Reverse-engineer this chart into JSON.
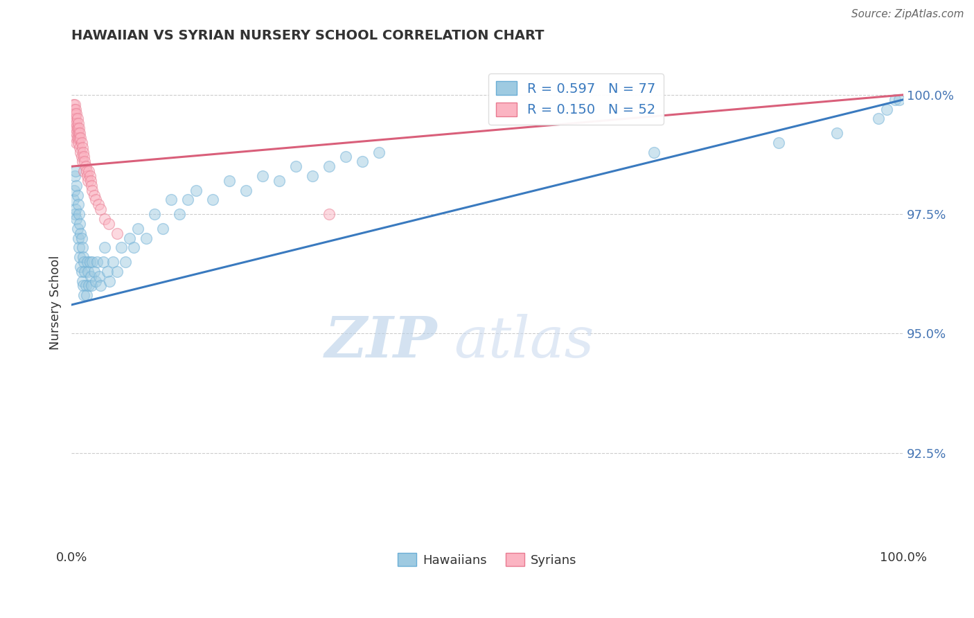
{
  "title": "HAWAIIAN VS SYRIAN NURSERY SCHOOL CORRELATION CHART",
  "source": "Source: ZipAtlas.com",
  "ylabel": "Nursery School",
  "xlim": [
    0.0,
    1.0
  ],
  "ylim": [
    0.905,
    1.008
  ],
  "yticks": [
    0.925,
    0.95,
    0.975,
    1.0
  ],
  "ytick_labels": [
    "92.5%",
    "95.0%",
    "97.5%",
    "100.0%"
  ],
  "xtick_labels": [
    "0.0%",
    "100.0%"
  ],
  "legend_r_entries": [
    {
      "label": "R = 0.597   N = 77",
      "color": "#7ab8e8"
    },
    {
      "label": "R = 0.150   N = 52",
      "color": "#f5a0b0"
    }
  ],
  "hawaiians": {
    "fill_color": "#9ecae1",
    "edge_color": "#6baed6",
    "trendline_color": "#3a7abf",
    "x": [
      0.002,
      0.003,
      0.004,
      0.004,
      0.005,
      0.005,
      0.006,
      0.006,
      0.007,
      0.007,
      0.008,
      0.008,
      0.009,
      0.009,
      0.01,
      0.01,
      0.011,
      0.011,
      0.012,
      0.012,
      0.013,
      0.013,
      0.014,
      0.014,
      0.015,
      0.015,
      0.016,
      0.017,
      0.018,
      0.019,
      0.02,
      0.021,
      0.022,
      0.023,
      0.024,
      0.025,
      0.027,
      0.029,
      0.031,
      0.033,
      0.035,
      0.038,
      0.04,
      0.043,
      0.046,
      0.05,
      0.055,
      0.06,
      0.065,
      0.07,
      0.075,
      0.08,
      0.09,
      0.1,
      0.11,
      0.12,
      0.13,
      0.14,
      0.15,
      0.17,
      0.19,
      0.21,
      0.23,
      0.25,
      0.27,
      0.29,
      0.31,
      0.33,
      0.35,
      0.37,
      0.7,
      0.85,
      0.92,
      0.97,
      0.98,
      0.99,
      0.995
    ],
    "y": [
      0.978,
      0.98,
      0.975,
      0.983,
      0.976,
      0.984,
      0.974,
      0.981,
      0.972,
      0.979,
      0.97,
      0.977,
      0.968,
      0.975,
      0.966,
      0.973,
      0.964,
      0.971,
      0.963,
      0.97,
      0.961,
      0.968,
      0.96,
      0.966,
      0.958,
      0.965,
      0.963,
      0.96,
      0.958,
      0.965,
      0.963,
      0.96,
      0.965,
      0.962,
      0.96,
      0.965,
      0.963,
      0.961,
      0.965,
      0.962,
      0.96,
      0.965,
      0.968,
      0.963,
      0.961,
      0.965,
      0.963,
      0.968,
      0.965,
      0.97,
      0.968,
      0.972,
      0.97,
      0.975,
      0.972,
      0.978,
      0.975,
      0.978,
      0.98,
      0.978,
      0.982,
      0.98,
      0.983,
      0.982,
      0.985,
      0.983,
      0.985,
      0.987,
      0.986,
      0.988,
      0.988,
      0.99,
      0.992,
      0.995,
      0.997,
      0.999,
      0.999
    ]
  },
  "syrians": {
    "fill_color": "#fbb4c2",
    "edge_color": "#e87a90",
    "trendline_color": "#d95f7a",
    "x": [
      0.002,
      0.002,
      0.003,
      0.003,
      0.004,
      0.004,
      0.004,
      0.005,
      0.005,
      0.005,
      0.005,
      0.006,
      0.006,
      0.006,
      0.006,
      0.007,
      0.007,
      0.007,
      0.008,
      0.008,
      0.008,
      0.009,
      0.009,
      0.01,
      0.01,
      0.011,
      0.011,
      0.012,
      0.012,
      0.013,
      0.013,
      0.014,
      0.015,
      0.015,
      0.016,
      0.017,
      0.018,
      0.019,
      0.02,
      0.021,
      0.022,
      0.023,
      0.024,
      0.025,
      0.027,
      0.029,
      0.032,
      0.035,
      0.04,
      0.045,
      0.055,
      0.31
    ],
    "y": [
      0.998,
      0.996,
      0.997,
      0.994,
      0.996,
      0.993,
      0.998,
      0.997,
      0.995,
      0.993,
      0.991,
      0.996,
      0.994,
      0.992,
      0.99,
      0.995,
      0.993,
      0.991,
      0.994,
      0.992,
      0.99,
      0.993,
      0.991,
      0.992,
      0.989,
      0.991,
      0.988,
      0.99,
      0.987,
      0.989,
      0.986,
      0.988,
      0.987,
      0.984,
      0.986,
      0.985,
      0.984,
      0.983,
      0.982,
      0.984,
      0.983,
      0.982,
      0.981,
      0.98,
      0.979,
      0.978,
      0.977,
      0.976,
      0.974,
      0.973,
      0.971,
      0.975
    ]
  },
  "background_color": "#ffffff",
  "dot_size": 130,
  "dot_alpha": 0.5,
  "dot_linewidth": 1.0,
  "trendline_hawaiians_x0": 0.0,
  "trendline_hawaiians_y0": 0.956,
  "trendline_hawaiians_x1": 1.0,
  "trendline_hawaiians_y1": 0.999,
  "trendline_syrians_x0": 0.0,
  "trendline_syrians_y0": 0.985,
  "trendline_syrians_x1": 1.0,
  "trendline_syrians_y1": 1.0
}
